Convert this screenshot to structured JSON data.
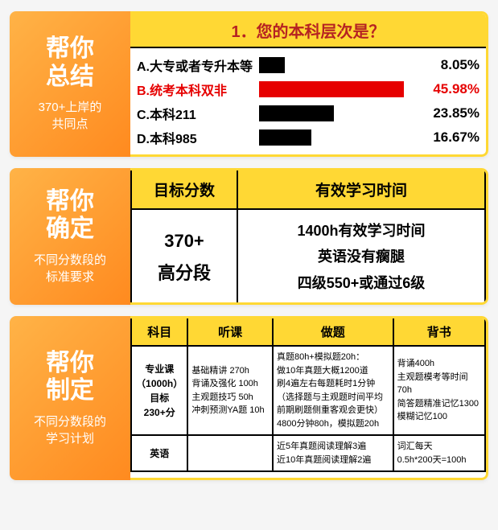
{
  "card1": {
    "tag_title_l1": "帮你",
    "tag_title_l2": "总结",
    "tag_sub_l1": "370+上岸的",
    "tag_sub_l2": "共同点",
    "header": "1．您的本科层次是？",
    "max_pct": 50,
    "rows": [
      {
        "label": "A.大专或者专升本等",
        "pct": 8.05,
        "pct_text": "8.05%",
        "highlight": false
      },
      {
        "label": "B.统考本科双非",
        "pct": 45.98,
        "pct_text": "45.98%",
        "highlight": true
      },
      {
        "label": "C.本科211",
        "pct": 23.85,
        "pct_text": "23.85%",
        "highlight": false
      },
      {
        "label": "D.本科985",
        "pct": 16.67,
        "pct_text": "16.67%",
        "highlight": false
      }
    ]
  },
  "card2": {
    "tag_title_l1": "帮你",
    "tag_title_l2": "确定",
    "tag_sub_l1": "不同分数段的",
    "tag_sub_l2": "标准要求",
    "th1": "目标分数",
    "th2": "有效学习时间",
    "cell_score_l1": "370+",
    "cell_score_l2": "高分段",
    "cell_time_l1": "1400h有效学习时间",
    "cell_time_l2": "英语没有瘸腿",
    "cell_time_l3": "四级550+或通过6级"
  },
  "card3": {
    "tag_title_l1": "帮你",
    "tag_title_l2": "制定",
    "tag_sub_l1": "不同分数段的",
    "tag_sub_l2": "学习计划",
    "cols": [
      "科目",
      "听课",
      "做题",
      "背书"
    ],
    "row1": {
      "subject_l1": "专业课",
      "subject_l2": "（1000h）",
      "subject_l3": "目标230+分",
      "listen": "基础精讲 270h\n背诵及强化 100h\n主观题技巧 50h\n冲刺预测YA题 10h",
      "practice": "真题80h+模拟题20h：\n做10年真题大概1200道\n刷4遍左右每题耗时1分钟\n（选择题与主观题时间平均\n前期刷题侧重客观会更快）\n4800分钟80h，模拟题20h",
      "recite": "背诵400h\n主观题模考等时间70h\n简答题精准记忆1300\n模糊记忆100"
    },
    "row2": {
      "subject": "英语",
      "practice": "近5年真题阅读理解3遍\n近10年真题阅读理解2遍",
      "recite": "词汇每天\n0.5h*200天=100h"
    }
  }
}
